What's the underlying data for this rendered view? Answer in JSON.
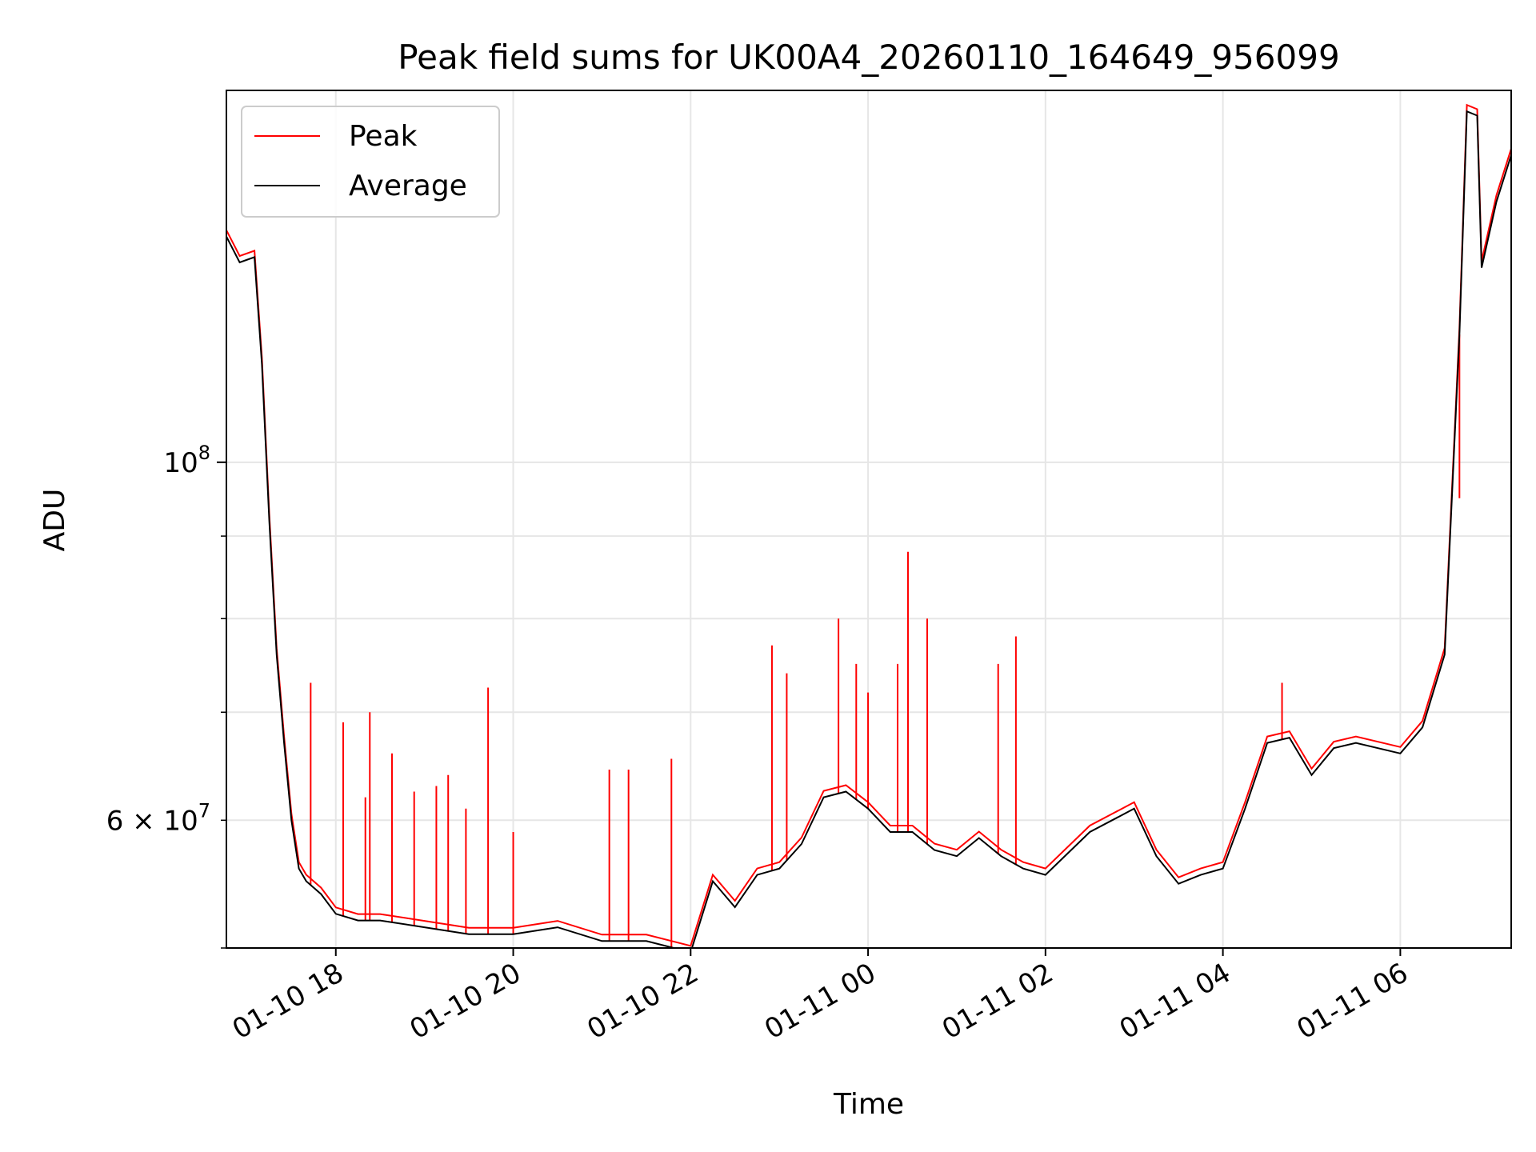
{
  "chart_data": {
    "type": "line",
    "title": "Peak field sums for UK00A4_20260110_164649_956099",
    "xlabel": "Time",
    "ylabel": "ADU",
    "y_scale": "log",
    "ylim": [
      50000000,
      170000000
    ],
    "xlim": [
      "2026-01-10 16:46",
      "2026-01-11 07:15"
    ],
    "x_ticks": [
      {
        "value": "2026-01-10 18:00",
        "label": "01-10 18"
      },
      {
        "value": "2026-01-10 20:00",
        "label": "01-10 20"
      },
      {
        "value": "2026-01-10 22:00",
        "label": "01-10 22"
      },
      {
        "value": "2026-01-11 00:00",
        "label": "01-11 00"
      },
      {
        "value": "2026-01-11 02:00",
        "label": "01-11 02"
      },
      {
        "value": "2026-01-11 04:00",
        "label": "01-11 04"
      },
      {
        "value": "2026-01-11 06:00",
        "label": "01-11 06"
      }
    ],
    "y_major_ticks": [
      {
        "value": 100000000,
        "label_base": "10",
        "label_exp": "8"
      }
    ],
    "y_minor_ticks": [
      {
        "value": 50000000
      },
      {
        "value": 60000000,
        "label": "6 × 10",
        "label_exp": "7"
      },
      {
        "value": 70000000
      },
      {
        "value": 80000000
      },
      {
        "value": 90000000
      }
    ],
    "grid": true,
    "legend": {
      "position": "top-left",
      "entries": [
        "Peak",
        "Average"
      ]
    },
    "colors": {
      "Peak": "#ff0000",
      "Average": "#000000"
    },
    "average_series": {
      "name": "Average",
      "x": [
        "2026-01-10 16:46",
        "2026-01-10 16:55",
        "2026-01-10 17:05",
        "2026-01-10 17:10",
        "2026-01-10 17:15",
        "2026-01-10 17:20",
        "2026-01-10 17:25",
        "2026-01-10 17:30",
        "2026-01-10 17:35",
        "2026-01-10 17:40",
        "2026-01-10 17:50",
        "2026-01-10 18:00",
        "2026-01-10 18:15",
        "2026-01-10 18:30",
        "2026-01-10 19:00",
        "2026-01-10 19:30",
        "2026-01-10 20:00",
        "2026-01-10 20:30",
        "2026-01-10 21:00",
        "2026-01-10 21:30",
        "2026-01-10 22:00",
        "2026-01-10 22:15",
        "2026-01-10 22:30",
        "2026-01-10 22:45",
        "2026-01-10 23:00",
        "2026-01-10 23:15",
        "2026-01-10 23:30",
        "2026-01-10 23:45",
        "2026-01-11 00:00",
        "2026-01-11 00:15",
        "2026-01-11 00:30",
        "2026-01-11 00:45",
        "2026-01-11 01:00",
        "2026-01-11 01:15",
        "2026-01-11 01:30",
        "2026-01-11 01:45",
        "2026-01-11 02:00",
        "2026-01-11 02:30",
        "2026-01-11 03:00",
        "2026-01-11 03:15",
        "2026-01-11 03:30",
        "2026-01-11 03:45",
        "2026-01-11 04:00",
        "2026-01-11 04:15",
        "2026-01-11 04:30",
        "2026-01-11 04:45",
        "2026-01-11 05:00",
        "2026-01-11 05:15",
        "2026-01-11 05:30",
        "2026-01-11 06:00",
        "2026-01-11 06:15",
        "2026-01-11 06:30",
        "2026-01-11 06:40",
        "2026-01-11 06:45",
        "2026-01-11 06:52",
        "2026-01-11 06:55",
        "2026-01-11 07:05",
        "2026-01-11 07:15"
      ],
      "y": [
        138000000,
        133000000,
        134000000,
        115000000,
        92000000,
        76000000,
        67000000,
        60000000,
        56000000,
        55000000,
        54000000,
        52500000,
        52000000,
        52000000,
        51500000,
        51000000,
        51000000,
        51500000,
        50500000,
        50500000,
        49700000,
        55000000,
        53000000,
        55500000,
        56000000,
        58000000,
        62000000,
        62500000,
        61000000,
        59000000,
        59000000,
        57500000,
        57000000,
        58500000,
        57000000,
        56000000,
        55500000,
        59000000,
        61000000,
        57000000,
        54800000,
        55500000,
        56000000,
        61000000,
        67000000,
        67500000,
        64000000,
        66500000,
        67000000,
        66000000,
        68500000,
        76000000,
        120000000,
        165000000,
        164000000,
        132000000,
        145000000,
        155000000
      ]
    },
    "peak_series": {
      "name": "Peak",
      "x": [
        "2026-01-10 17:43",
        "2026-01-10 18:05",
        "2026-01-10 18:20",
        "2026-01-10 18:23",
        "2026-01-10 18:38",
        "2026-01-10 18:53",
        "2026-01-10 19:08",
        "2026-01-10 19:16",
        "2026-01-10 19:28",
        "2026-01-10 19:43",
        "2026-01-10 20:00",
        "2026-01-10 21:05",
        "2026-01-10 21:18",
        "2026-01-10 21:47",
        "2026-01-10 22:55",
        "2026-01-10 23:05",
        "2026-01-10 23:40",
        "2026-01-10 23:52",
        "2026-01-11 00:00",
        "2026-01-11 00:20",
        "2026-01-11 00:27",
        "2026-01-11 00:40",
        "2026-01-11 01:28",
        "2026-01-11 01:40",
        "2026-01-11 04:40",
        "2026-01-11 06:40"
      ],
      "y": [
        73000000,
        69000000,
        62000000,
        70000000,
        66000000,
        62500000,
        63000000,
        64000000,
        61000000,
        72500000,
        59000000,
        64500000,
        64500000,
        65500000,
        77000000,
        74000000,
        80000000,
        75000000,
        72000000,
        75000000,
        88000000,
        80000000,
        75000000,
        78000000,
        73000000,
        95000000
      ]
    }
  }
}
